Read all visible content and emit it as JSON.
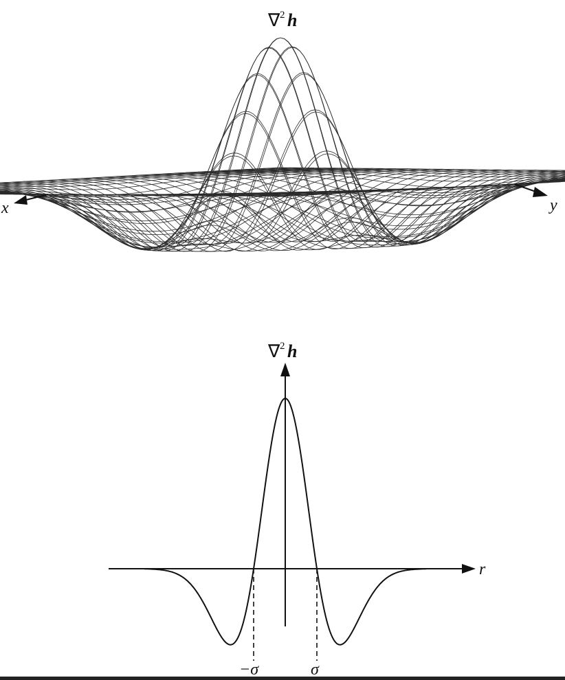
{
  "top_surface": {
    "title_nabla": "∇",
    "title_sup": "2",
    "title_var": "h",
    "axis_x": "x",
    "axis_y": "y"
  },
  "profile": {
    "title_nabla": "∇",
    "title_sup": "2",
    "title_var": "h",
    "axis_r": "r",
    "tick_neg": "−σ",
    "tick_pos": "σ"
  }
}
